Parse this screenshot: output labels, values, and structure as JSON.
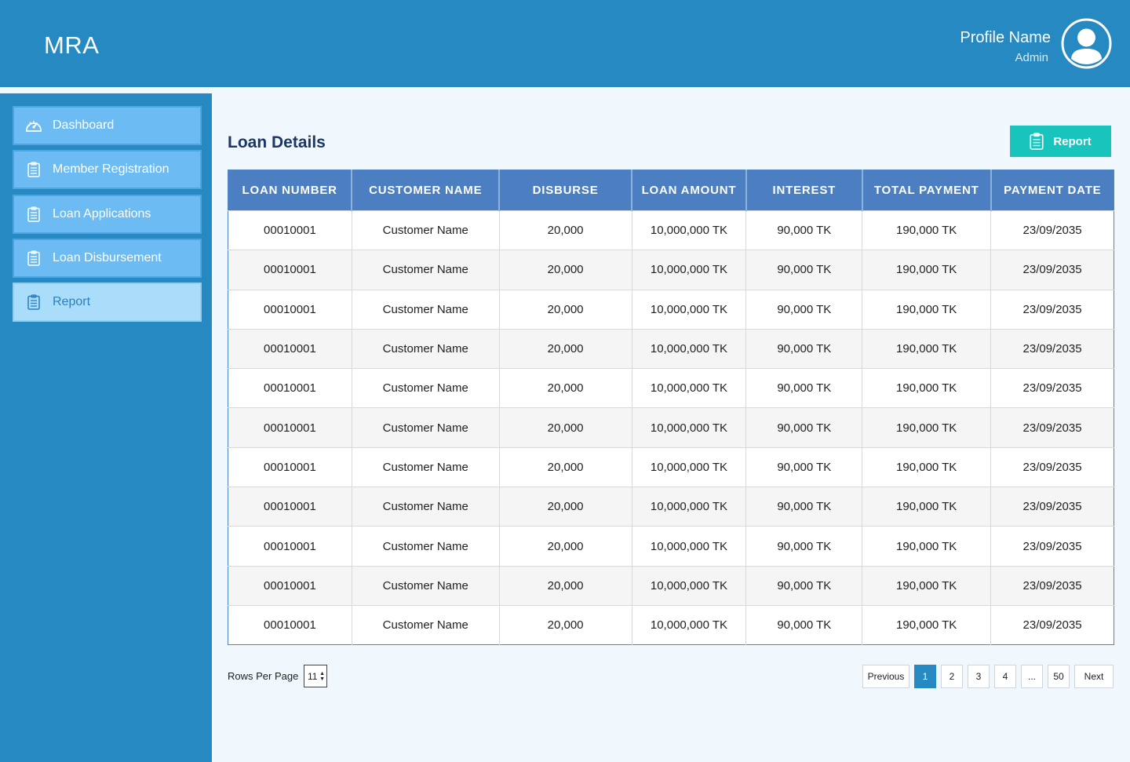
{
  "header": {
    "brand": "MRA",
    "profile_name": "Profile Name",
    "profile_role": "Admin",
    "avatar_icon": "user-avatar-icon"
  },
  "sidebar": {
    "items": [
      {
        "label": "Dashboard",
        "icon": "dashboard-gauge-icon"
      },
      {
        "label": "Member Registration",
        "icon": "clipboard-icon"
      },
      {
        "label": "Loan Applications",
        "icon": "clipboard-icon"
      },
      {
        "label": "Loan Disbursement",
        "icon": "clipboard-icon"
      },
      {
        "label": "Report",
        "icon": "clipboard-icon",
        "active": true
      }
    ]
  },
  "main": {
    "title": "Loan Details",
    "report_button": "Report",
    "table": {
      "columns": [
        "LOAN NUMBER",
        "CUSTOMER NAME",
        "DISBURSE",
        "LOAN AMOUNT",
        "INTEREST",
        "TOTAL PAYMENT",
        "PAYMENT DATE"
      ],
      "rows": [
        [
          "00010001",
          "Customer Name",
          "20,000",
          "10,000,000 TK",
          "90,000 TK",
          "190,000 TK",
          "23/09/2035"
        ],
        [
          "00010001",
          "Customer Name",
          "20,000",
          "10,000,000 TK",
          "90,000 TK",
          "190,000 TK",
          "23/09/2035"
        ],
        [
          "00010001",
          "Customer Name",
          "20,000",
          "10,000,000 TK",
          "90,000 TK",
          "190,000 TK",
          "23/09/2035"
        ],
        [
          "00010001",
          "Customer Name",
          "20,000",
          "10,000,000 TK",
          "90,000 TK",
          "190,000 TK",
          "23/09/2035"
        ],
        [
          "00010001",
          "Customer Name",
          "20,000",
          "10,000,000 TK",
          "90,000 TK",
          "190,000 TK",
          "23/09/2035"
        ],
        [
          "00010001",
          "Customer Name",
          "20,000",
          "10,000,000 TK",
          "90,000 TK",
          "190,000 TK",
          "23/09/2035"
        ],
        [
          "00010001",
          "Customer Name",
          "20,000",
          "10,000,000 TK",
          "90,000 TK",
          "190,000 TK",
          "23/09/2035"
        ],
        [
          "00010001",
          "Customer Name",
          "20,000",
          "10,000,000 TK",
          "90,000 TK",
          "190,000 TK",
          "23/09/2035"
        ],
        [
          "00010001",
          "Customer Name",
          "20,000",
          "10,000,000 TK",
          "90,000 TK",
          "190,000 TK",
          "23/09/2035"
        ],
        [
          "00010001",
          "Customer Name",
          "20,000",
          "10,000,000 TK",
          "90,000 TK",
          "190,000 TK",
          "23/09/2035"
        ],
        [
          "00010001",
          "Customer Name",
          "20,000",
          "10,000,000 TK",
          "90,000 TK",
          "190,000 TK",
          "23/09/2035"
        ]
      ]
    }
  },
  "footer": {
    "rows_per_page_label": "Rows Per Page",
    "rows_per_page_value": "11",
    "pagination": {
      "previous": "Previous",
      "pages": [
        "1",
        "2",
        "3",
        "4",
        "...",
        "50"
      ],
      "current": "1",
      "next": "Next"
    }
  },
  "colors": {
    "primary": "#2689c1",
    "sidebar_item": "#6cbcf3",
    "sidebar_active": "#a9ddfa",
    "table_header": "#4b7fc2",
    "report_button": "#19c4bd",
    "title": "#1b3768"
  }
}
